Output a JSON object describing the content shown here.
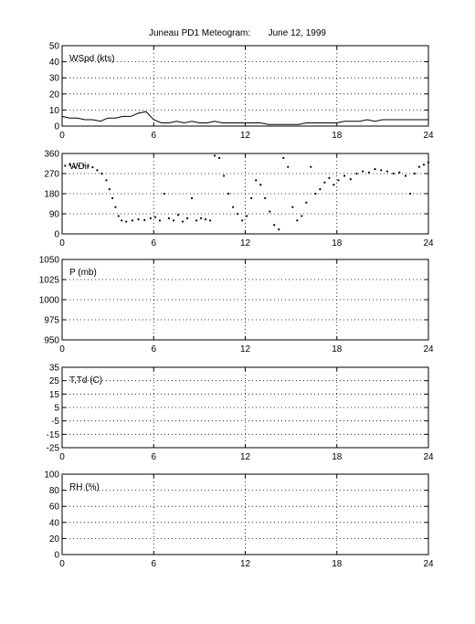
{
  "title": "Juneau PD1 Meteogram:       June 12, 1999",
  "chart_data": [
    {
      "type": "line",
      "panel_label": "WSpd (kts)",
      "xlim": [
        0,
        24
      ],
      "ylim": [
        0,
        50
      ],
      "xticks": [
        0,
        6,
        12,
        18,
        24
      ],
      "yticks": [
        0,
        10,
        20,
        30,
        40,
        50
      ],
      "grid": true,
      "x": [
        0,
        0.5,
        1,
        1.5,
        2,
        2.5,
        3,
        3.5,
        4,
        4.5,
        5,
        5.5,
        6,
        6.5,
        7,
        7.5,
        8,
        8.5,
        9,
        9.5,
        10,
        10.5,
        11,
        11.5,
        12,
        12.5,
        13,
        13.5,
        14,
        14.5,
        15,
        15.5,
        16,
        16.5,
        17,
        17.5,
        18,
        18.5,
        19,
        19.5,
        20,
        20.5,
        21,
        21.5,
        22,
        22.5,
        23,
        23.5,
        24
      ],
      "values": [
        6,
        5,
        5,
        4,
        4,
        3,
        5,
        5,
        6,
        6,
        8,
        9,
        4,
        2,
        2,
        3,
        2,
        3,
        2,
        2,
        3,
        2,
        2,
        2,
        2,
        2,
        2,
        1,
        1,
        1,
        1,
        1,
        2,
        2,
        2,
        2,
        2,
        3,
        3,
        3,
        4,
        3,
        4,
        4,
        4,
        4,
        4,
        4,
        4
      ]
    },
    {
      "type": "scatter",
      "panel_label": "WDir",
      "xlim": [
        0,
        24
      ],
      "ylim": [
        0,
        360
      ],
      "xticks": [
        0,
        6,
        12,
        18,
        24
      ],
      "yticks": [
        0,
        90,
        180,
        270,
        360
      ],
      "grid": true,
      "x": [
        0.2,
        0.5,
        0.8,
        1.1,
        1.4,
        1.7,
        2.0,
        2.3,
        2.6,
        2.9,
        3.1,
        3.3,
        3.5,
        3.7,
        3.9,
        4.2,
        4.6,
        5.0,
        5.4,
        5.8,
        6.1,
        6.4,
        6.7,
        7.0,
        7.3,
        7.6,
        7.9,
        8.2,
        8.5,
        8.8,
        9.1,
        9.4,
        9.7,
        10.0,
        10.3,
        10.6,
        10.9,
        11.2,
        11.5,
        11.8,
        12.1,
        12.4,
        12.7,
        13.0,
        13.3,
        13.6,
        13.9,
        14.2,
        14.5,
        14.8,
        15.1,
        15.4,
        15.7,
        16.0,
        16.3,
        16.6,
        16.9,
        17.2,
        17.5,
        17.8,
        18.1,
        18.5,
        18.9,
        19.3,
        19.7,
        20.1,
        20.5,
        20.9,
        21.3,
        21.7,
        22.1,
        22.5,
        22.8,
        23.1,
        23.4,
        23.7,
        24.0
      ],
      "values": [
        305,
        310,
        300,
        305,
        308,
        302,
        298,
        285,
        270,
        240,
        200,
        160,
        120,
        80,
        60,
        55,
        60,
        65,
        62,
        70,
        75,
        60,
        180,
        70,
        60,
        85,
        55,
        70,
        160,
        60,
        70,
        65,
        60,
        350,
        340,
        260,
        180,
        120,
        90,
        60,
        80,
        160,
        240,
        220,
        160,
        100,
        40,
        20,
        340,
        300,
        120,
        60,
        80,
        140,
        300,
        180,
        200,
        230,
        250,
        220,
        240,
        260,
        245,
        270,
        280,
        275,
        290,
        285,
        280,
        270,
        275,
        260,
        180,
        270,
        300,
        310,
        320
      ]
    },
    {
      "type": "line",
      "panel_label": "P (mb)",
      "xlim": [
        0,
        24
      ],
      "ylim": [
        950,
        1050
      ],
      "xticks": [
        0,
        6,
        12,
        18,
        24
      ],
      "yticks": [
        950,
        975,
        1000,
        1025,
        1050
      ],
      "grid": true,
      "x": [],
      "values": []
    },
    {
      "type": "line",
      "panel_label": "T,Td (C)",
      "xlim": [
        0,
        24
      ],
      "ylim": [
        -25,
        35
      ],
      "xticks": [
        0,
        6,
        12,
        18,
        24
      ],
      "yticks": [
        -25,
        -15,
        -5,
        5,
        15,
        25,
        35
      ],
      "yticks_shown": [
        -25,
        -15,
        -5,
        5,
        15,
        25,
        35
      ],
      "grid": true,
      "x": [],
      "values": []
    },
    {
      "type": "line",
      "panel_label": "RH (%)",
      "xlim": [
        0,
        24
      ],
      "ylim": [
        0,
        100
      ],
      "xticks": [
        0,
        6,
        12,
        18,
        24
      ],
      "yticks": [
        0,
        20,
        40,
        60,
        80,
        100
      ],
      "grid": true,
      "x": [],
      "values": []
    }
  ]
}
